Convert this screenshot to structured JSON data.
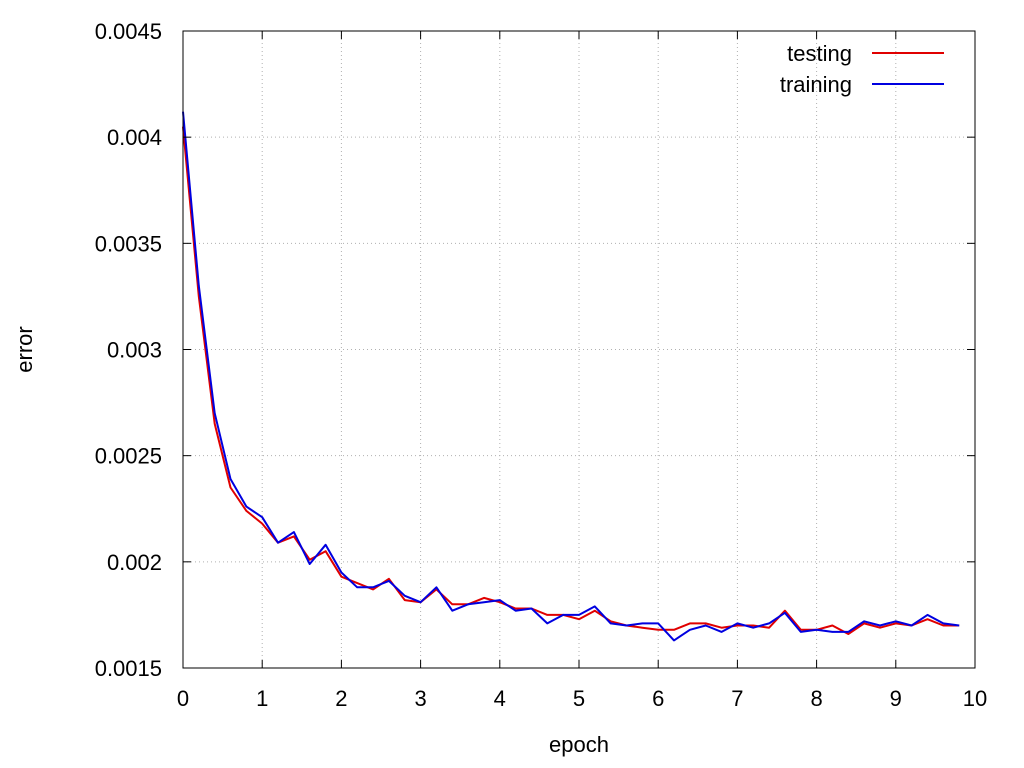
{
  "chart_data": {
    "type": "line",
    "title": "",
    "xlabel": "epoch",
    "ylabel": "error",
    "xlim": [
      0,
      10
    ],
    "ylim": [
      0.0015,
      0.0045
    ],
    "x_ticks": [
      0,
      1,
      2,
      3,
      4,
      5,
      6,
      7,
      8,
      9,
      10
    ],
    "x_tick_labels": [
      "0",
      "1",
      "2",
      "3",
      "4",
      "5",
      "6",
      "7",
      "8",
      "9",
      "10"
    ],
    "y_ticks": [
      0.0015,
      0.002,
      0.0025,
      0.003,
      0.0035,
      0.004,
      0.0045
    ],
    "y_tick_labels": [
      "0.0015",
      "0.002",
      "0.0025",
      "0.003",
      "0.0035",
      "0.004",
      "0.0045"
    ],
    "grid": true,
    "legend_position": "top-right",
    "x": [
      0,
      0.2,
      0.4,
      0.6,
      0.8,
      1.0,
      1.2,
      1.4,
      1.6,
      1.8,
      2.0,
      2.2,
      2.4,
      2.6,
      2.8,
      3.0,
      3.2,
      3.4,
      3.6,
      3.8,
      4.0,
      4.2,
      4.4,
      4.6,
      4.8,
      5.0,
      5.2,
      5.4,
      5.6,
      5.8,
      6.0,
      6.2,
      6.4,
      6.6,
      6.8,
      7.0,
      7.2,
      7.4,
      7.6,
      7.8,
      8.0,
      8.2,
      8.4,
      8.6,
      8.8,
      9.0,
      9.2,
      9.4,
      9.6,
      9.8
    ],
    "series": [
      {
        "name": "testing",
        "color": "#e00000",
        "values": [
          0.00405,
          0.00325,
          0.00265,
          0.00235,
          0.00224,
          0.00218,
          0.00209,
          0.00212,
          0.00201,
          0.00205,
          0.00193,
          0.0019,
          0.00187,
          0.00192,
          0.00182,
          0.00181,
          0.00187,
          0.0018,
          0.0018,
          0.00183,
          0.00181,
          0.00178,
          0.00178,
          0.00175,
          0.00175,
          0.00173,
          0.00177,
          0.00172,
          0.0017,
          0.00169,
          0.00168,
          0.00168,
          0.00171,
          0.00171,
          0.00169,
          0.0017,
          0.0017,
          0.00169,
          0.00177,
          0.00168,
          0.00168,
          0.0017,
          0.00166,
          0.00171,
          0.00169,
          0.00171,
          0.0017,
          0.00173,
          0.0017,
          0.0017
        ]
      },
      {
        "name": "training",
        "color": "#0000e0",
        "values": [
          0.00412,
          0.0033,
          0.0027,
          0.00239,
          0.00226,
          0.00221,
          0.00209,
          0.00214,
          0.00199,
          0.00208,
          0.00195,
          0.00188,
          0.00188,
          0.00191,
          0.00184,
          0.00181,
          0.00188,
          0.00177,
          0.0018,
          0.00181,
          0.00182,
          0.00177,
          0.00178,
          0.00171,
          0.00175,
          0.00175,
          0.00179,
          0.00171,
          0.0017,
          0.00171,
          0.00171,
          0.00163,
          0.00168,
          0.0017,
          0.00167,
          0.00171,
          0.00169,
          0.00171,
          0.00176,
          0.00167,
          0.00168,
          0.00167,
          0.00167,
          0.00172,
          0.0017,
          0.00172,
          0.0017,
          0.00175,
          0.00171,
          0.0017
        ]
      }
    ]
  }
}
